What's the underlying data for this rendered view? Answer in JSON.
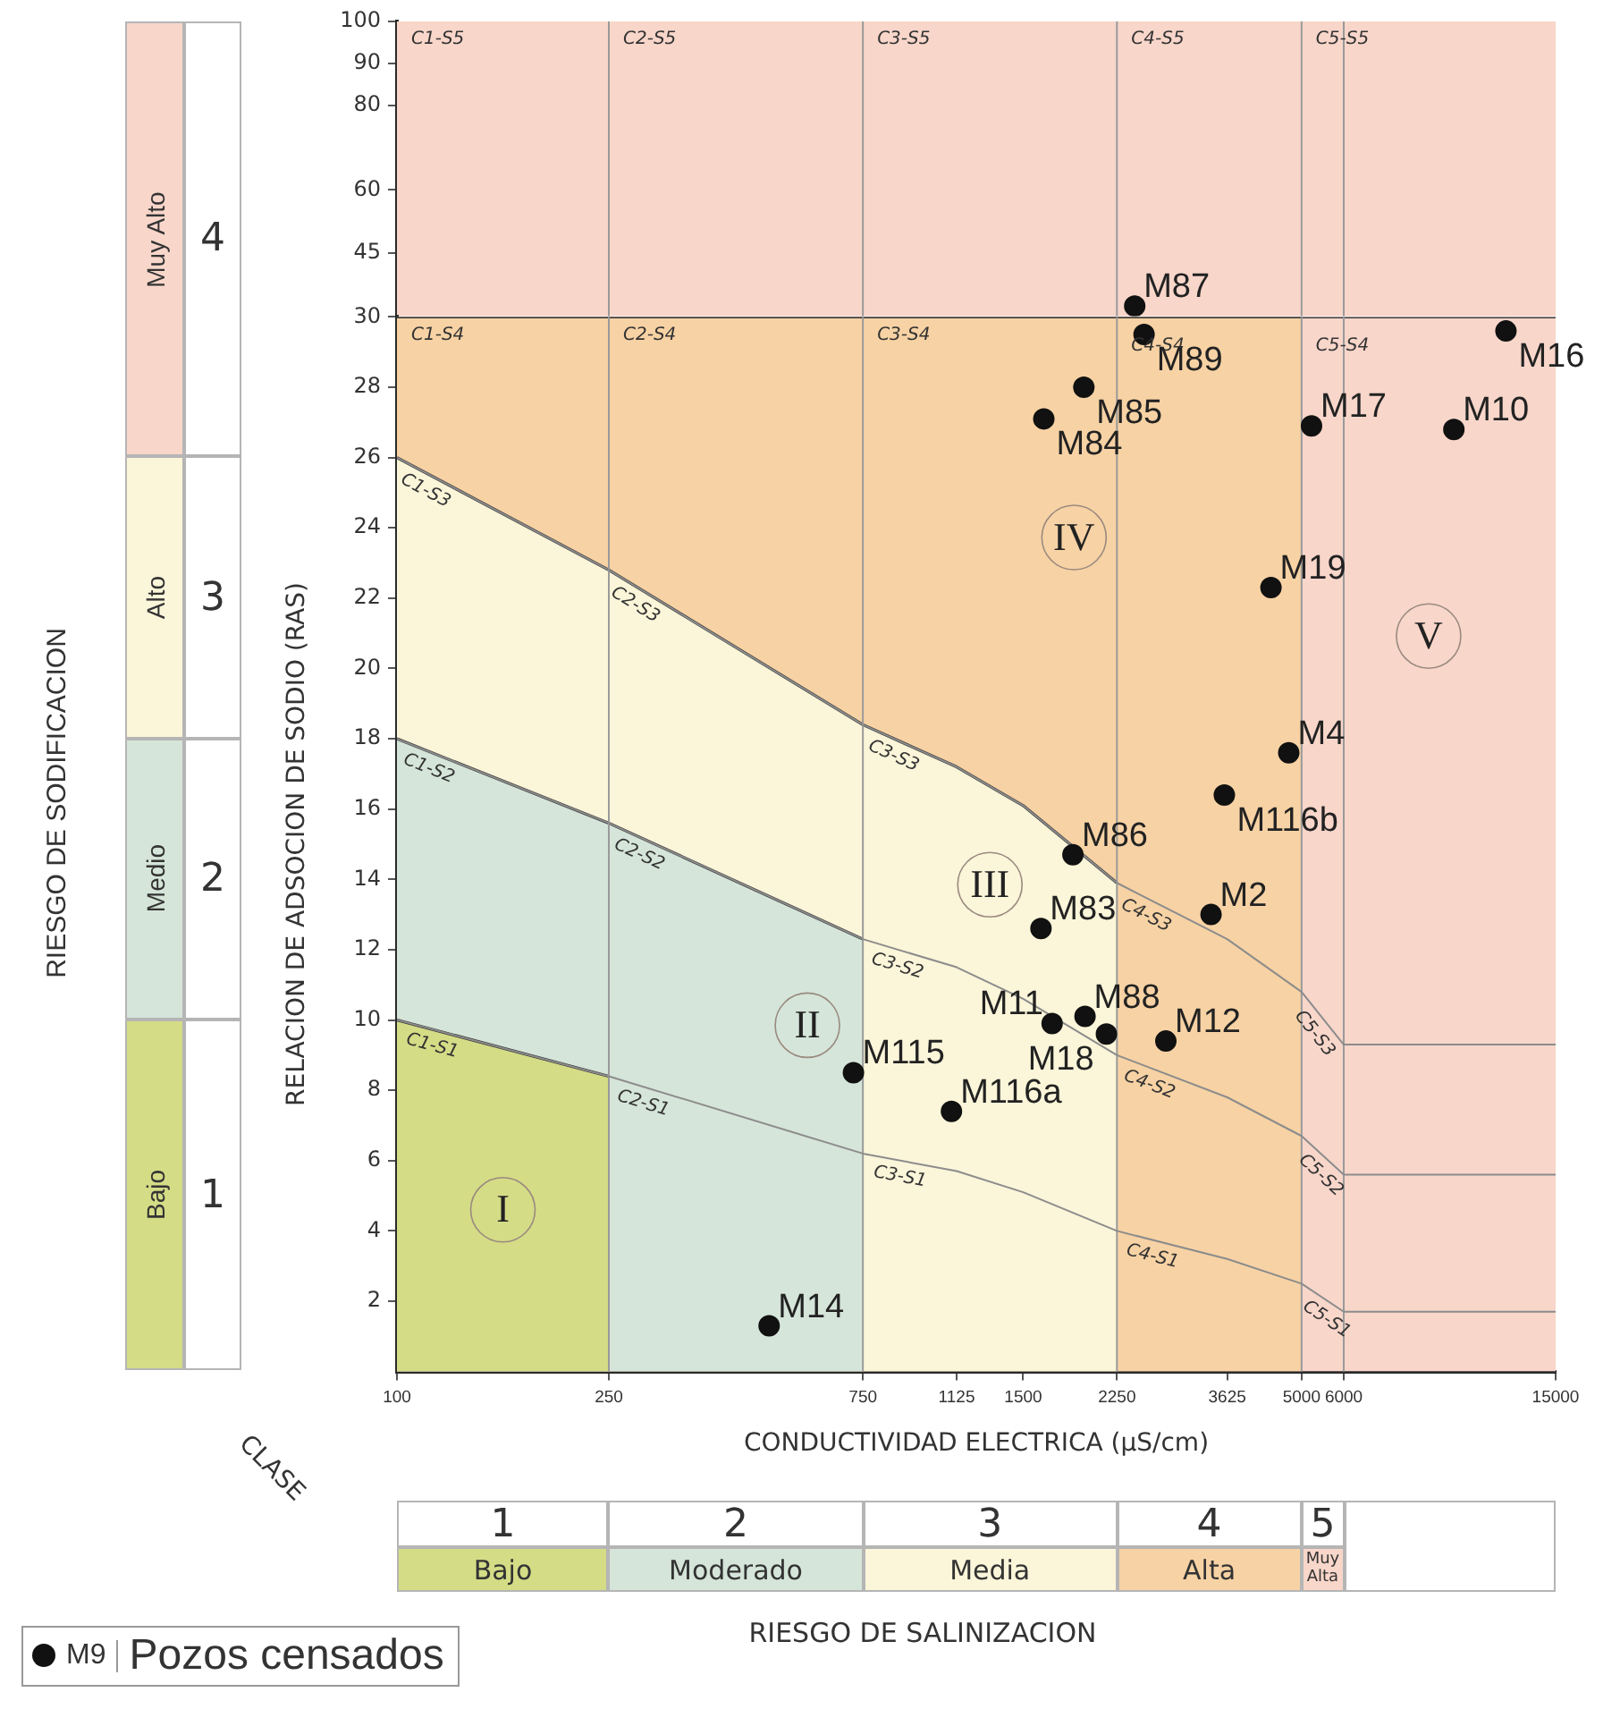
{
  "chart_data": [
    {
      "type": "scatter",
      "log": "x",
      "xlim": [
        100,
        15000
      ],
      "ylim": [
        30,
        100
      ],
      "yticks": [
        45,
        60,
        80,
        90,
        100
      ],
      "tick_labels": "y",
      "series": [
        {
          "type": "scatter",
          "color": "#111111",
          "marker": "circle",
          "x": [
            2430
          ],
          "values": [
            32.4
          ],
          "value_labels": [
            "M87"
          ]
        }
      ],
      "bands": [
        {
          "axis": "y",
          "from": 30,
          "to": 100,
          "color": "#f8d6ca"
        }
      ],
      "ref_lines": [
        {
          "axis": "x",
          "value": 250,
          "color": "#9a9a9a"
        },
        {
          "axis": "x",
          "value": 750,
          "color": "#9a9a9a"
        },
        {
          "axis": "x",
          "value": 2250,
          "color": "#9a9a9a"
        },
        {
          "axis": "x",
          "value": 5000,
          "color": "#9a9a9a"
        },
        {
          "axis": "x",
          "value": 6000,
          "color": "#9a9a9a"
        }
      ],
      "annotations": [
        "C1-S5",
        "C2-S5",
        "C3-S5",
        "C4-S5",
        "C5-S5"
      ]
    },
    {
      "type": "scatter",
      "log": "x",
      "xlabel": "CONDUCTIVIDAD ELECTRICA (μS/cm)",
      "ylabel": "RELACION DE ADSOCION DE SODIO (RAS)",
      "xlim": [
        100,
        15000
      ],
      "xticks": [
        100,
        250,
        750,
        1125,
        1500,
        2250,
        3625,
        5000,
        6000,
        15000
      ],
      "ylim": [
        0,
        30
      ],
      "yticks": [
        2,
        4,
        6,
        8,
        10,
        12,
        14,
        16,
        18,
        20,
        22,
        24,
        26,
        28,
        30
      ],
      "legend": "bottom left",
      "series": [
        {
          "type": "area",
          "color": "#f8d6ca",
          "x": [
            100,
            15000
          ],
          "values": [
            30,
            30
          ]
        },
        {
          "type": "area",
          "color": "#f7d2a4",
          "x": [
            100,
            5000
          ],
          "values": [
            30,
            30
          ]
        },
        {
          "type": "area",
          "color": "#fbf5d9",
          "x": [
            100,
            250,
            750,
            1125,
            1500,
            2250
          ],
          "values": [
            26,
            22.8,
            18.4,
            17.2,
            16.1,
            13.9
          ]
        },
        {
          "type": "area",
          "color": "#d5e5d9",
          "x": [
            100,
            250,
            750
          ],
          "values": [
            18,
            15.6,
            12.3
          ]
        },
        {
          "type": "area",
          "color": "#d4dc86",
          "x": [
            100,
            250
          ],
          "values": [
            10,
            8.4
          ]
        },
        {
          "type": "line",
          "color": "#8c8c8c",
          "x": [
            100,
            250,
            750,
            1125,
            1500,
            2250,
            3625,
            5000,
            6000,
            15000
          ],
          "values": [
            10,
            8.4,
            6.2,
            5.7,
            5.1,
            4.0,
            3.2,
            2.5,
            1.7,
            1.7
          ]
        },
        {
          "type": "line",
          "color": "#8c8c8c",
          "x": [
            100,
            250,
            750,
            1125,
            1500,
            2250,
            3625,
            5000,
            6000,
            15000
          ],
          "values": [
            18,
            15.6,
            12.3,
            11.5,
            10.6,
            9.0,
            7.8,
            6.7,
            5.6,
            5.6
          ]
        },
        {
          "type": "line",
          "color": "#8c8c8c",
          "x": [
            100,
            250,
            750,
            1125,
            1500,
            2250,
            3625,
            5000,
            6000,
            15000
          ],
          "values": [
            26,
            22.8,
            18.4,
            17.2,
            16.1,
            13.9,
            12.3,
            10.8,
            9.3,
            9.3
          ]
        },
        {
          "type": "scatter",
          "name": "Pozos censados",
          "color": "#111111",
          "marker": "circle",
          "x": [
            2530,
            1950,
            1640,
            12100,
            9660,
            5220,
            4380,
            4730,
            3580,
            1860,
            3380,
            1620,
            1960,
            1700,
            2150,
            2780,
            1100,
            720,
            500
          ],
          "values": [
            29.5,
            28.0,
            27.1,
            29.6,
            26.8,
            26.9,
            22.3,
            17.6,
            16.4,
            14.7,
            13.0,
            12.6,
            10.1,
            9.9,
            9.6,
            9.4,
            7.4,
            8.5,
            1.3
          ],
          "value_labels": [
            "M89",
            "M85",
            "M84",
            "M16",
            "M10",
            "M17",
            "M19",
            "M4",
            "M116b",
            "M86",
            "M2",
            "M83",
            "M88",
            "M11",
            "M18",
            "M12",
            "M116a",
            "M115",
            "M14"
          ]
        }
      ],
      "ref_lines": [
        {
          "axis": "x",
          "value": 250,
          "color": "#9a9a9a"
        },
        {
          "axis": "x",
          "value": 750,
          "color": "#9a9a9a"
        },
        {
          "axis": "x",
          "value": 2250,
          "color": "#9a9a9a"
        },
        {
          "axis": "x",
          "value": 5000,
          "color": "#9a9a9a"
        },
        {
          "axis": "x",
          "value": 6000,
          "color": "#9a9a9a"
        }
      ],
      "annotations": [
        "CLASE",
        "RIESGO DE SALINIZACION",
        "RIESGO DE SODIFICACION",
        "M9",
        "1",
        "Bajo",
        "2",
        "Moderado",
        "3",
        "Media",
        "4",
        "Alta",
        "5",
        "Muy Alta",
        "1",
        "Bajo",
        "2",
        "Medio",
        "3",
        "Alto",
        "4",
        "Muy Alto",
        "I",
        "II",
        "III",
        "IV",
        "V",
        "C1-S4",
        "C2-S4",
        "C3-S4",
        "C4-S4",
        "C5-S4",
        {
          "text": "C1-S3",
          "x": 100,
          "y": 26
        },
        {
          "text": "C2-S3",
          "x": 250,
          "y": 22.8
        },
        {
          "text": "C3-S3",
          "x": 750,
          "y": 18.4
        },
        {
          "text": "C4-S3",
          "x": 2250,
          "y": 13.9
        },
        {
          "text": "C5-S3",
          "x": 5000,
          "y": 10.8
        },
        {
          "text": "C1-S2",
          "x": 100,
          "y": 18
        },
        {
          "text": "C2-S2",
          "x": 250,
          "y": 15.6
        },
        {
          "text": "C3-S2",
          "x": 750,
          "y": 12.3
        },
        {
          "text": "C4-S2",
          "x": 2250,
          "y": 9.0
        },
        {
          "text": "C5-S2",
          "x": 5000,
          "y": 6.7
        },
        {
          "text": "C1-S1",
          "x": 100,
          "y": 10
        },
        {
          "text": "C2-S1",
          "x": 250,
          "y": 8.4
        },
        {
          "text": "C3-S1",
          "x": 750,
          "y": 6.2
        },
        {
          "text": "C4-S1",
          "x": 2250,
          "y": 4.0
        },
        {
          "text": "C5-S1",
          "x": 5000,
          "y": 2.5
        }
      ]
    }
  ]
}
